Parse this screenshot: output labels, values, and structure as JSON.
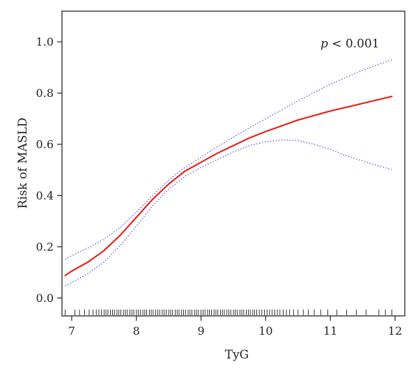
{
  "chart_data": {
    "type": "line",
    "title": "",
    "xlabel": "TyG",
    "ylabel": "Risk of MASLD",
    "xlim": [
      6.85,
      12.15
    ],
    "ylim": [
      -0.07,
      1.12
    ],
    "xticks": [
      "7",
      "8",
      "9",
      "10",
      "11",
      "12"
    ],
    "yticks": [
      "0.0",
      "0.2",
      "0.4",
      "0.6",
      "0.8",
      "1.0"
    ],
    "annotation": {
      "prefix": "p",
      "text": " < 0.001"
    },
    "grid": false,
    "legend": "none",
    "colors": {
      "estimate": "#e8231c",
      "ci": "#4b4fc8",
      "rug": "#000000",
      "axis": "#222222"
    },
    "series": [
      {
        "role": "estimate",
        "x": [
          6.9,
          7.0,
          7.25,
          7.5,
          7.75,
          8.0,
          8.25,
          8.5,
          8.75,
          9.0,
          9.25,
          9.5,
          9.75,
          10.0,
          10.5,
          11.0,
          11.5,
          11.95
        ],
        "y": [
          0.088,
          0.105,
          0.14,
          0.185,
          0.245,
          0.315,
          0.385,
          0.445,
          0.495,
          0.53,
          0.565,
          0.595,
          0.625,
          0.65,
          0.695,
          0.73,
          0.76,
          0.787
        ]
      },
      {
        "role": "ci-upper",
        "x": [
          6.9,
          7.0,
          7.25,
          7.5,
          7.75,
          8.0,
          8.25,
          8.5,
          8.75,
          9.0,
          9.25,
          9.5,
          9.75,
          10.0,
          10.5,
          11.0,
          11.5,
          11.95
        ],
        "y": [
          0.152,
          0.165,
          0.195,
          0.23,
          0.275,
          0.335,
          0.4,
          0.46,
          0.51,
          0.55,
          0.59,
          0.628,
          0.665,
          0.7,
          0.77,
          0.835,
          0.89,
          0.93
        ]
      },
      {
        "role": "ci-lower",
        "x": [
          6.9,
          7.0,
          7.25,
          7.5,
          7.75,
          8.0,
          8.25,
          8.5,
          8.75,
          9.0,
          9.25,
          9.5,
          9.75,
          10.0,
          10.25,
          10.5,
          10.75,
          11.0,
          11.25,
          11.5,
          11.75,
          11.95
        ],
        "y": [
          0.048,
          0.06,
          0.095,
          0.14,
          0.205,
          0.28,
          0.36,
          0.425,
          0.475,
          0.51,
          0.54,
          0.57,
          0.595,
          0.61,
          0.617,
          0.615,
          0.6,
          0.58,
          0.555,
          0.535,
          0.515,
          0.502
        ]
      }
    ],
    "rug": [
      6.9,
      7.05,
      7.12,
      7.2,
      7.27,
      7.33,
      7.38,
      7.42,
      7.46,
      7.5,
      7.53,
      7.56,
      7.6,
      7.63,
      7.66,
      7.7,
      7.73,
      7.76,
      7.8,
      7.83,
      7.86,
      7.9,
      7.93,
      7.96,
      8.0,
      8.03,
      8.06,
      8.1,
      8.13,
      8.16,
      8.2,
      8.23,
      8.26,
      8.3,
      8.33,
      8.36,
      8.4,
      8.43,
      8.46,
      8.5,
      8.53,
      8.56,
      8.6,
      8.63,
      8.66,
      8.7,
      8.73,
      8.76,
      8.8,
      8.83,
      8.86,
      8.9,
      8.93,
      8.96,
      9.0,
      9.03,
      9.06,
      9.1,
      9.13,
      9.16,
      9.2,
      9.23,
      9.26,
      9.3,
      9.33,
      9.36,
      9.4,
      9.43,
      9.46,
      9.5,
      9.53,
      9.56,
      9.6,
      9.63,
      9.66,
      9.7,
      9.73,
      9.76,
      9.8,
      9.83,
      9.86,
      9.9,
      9.94,
      9.98,
      10.02,
      10.06,
      10.1,
      10.14,
      10.18,
      10.22,
      10.27,
      10.32,
      10.37,
      10.43,
      10.5,
      10.58,
      10.66,
      10.75,
      10.85,
      10.96,
      11.1,
      11.25,
      11.4,
      11.55,
      11.75,
      11.85,
      11.95
    ]
  }
}
